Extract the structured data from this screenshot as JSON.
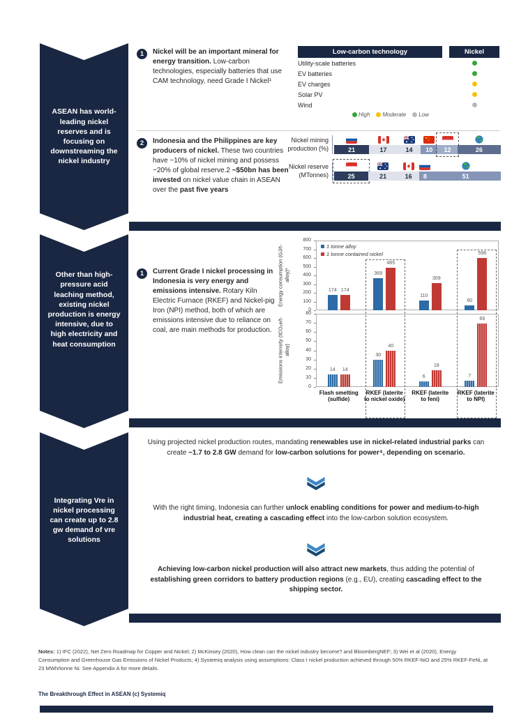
{
  "colors": {
    "navy": "#1a2742",
    "levels": {
      "high": "#35a635",
      "moderate": "#f5c20d",
      "low": "#b8b8b8"
    },
    "chevron_light": "#3d86c6",
    "chevron_dark": "#174a73"
  },
  "banners": [
    {
      "text": "ASEAN has world-leading nickel reserves and is focusing on downstreaming the nickel industry"
    },
    {
      "text": "Other than high-pressure acid leaching method, existing nickel production is energy intensive, due to high electricity and heat consumption"
    },
    {
      "text": "Integrating Vre in nickel processing can create up to 2.8 gw demand of vre solutions"
    }
  ],
  "section_reserves": {
    "point1": {
      "number": "1",
      "runs": [
        {
          "t": "Nickel will be an important mineral for energy transition.",
          "b": true
        },
        {
          "t": " Low-carbon technologies, especially batteries that use CAM technology, need Grade I Nickel¹",
          "b": false
        }
      ]
    },
    "nickel_table": {
      "col1_header": "Low-carbon technology",
      "col2_header": "Nickel",
      "rows": [
        {
          "label": "Utility-scale batteries",
          "level": "high"
        },
        {
          "label": "EV batteries",
          "level": "high"
        },
        {
          "label": "EV charges",
          "level": "moderate"
        },
        {
          "label": "Solar PV",
          "level": "moderate"
        },
        {
          "label": "Wind",
          "level": "low"
        }
      ],
      "legend": [
        {
          "label": "High",
          "level": "high"
        },
        {
          "label": "Moderate",
          "level": "moderate"
        },
        {
          "label": "Low",
          "level": "low"
        }
      ]
    },
    "point2": {
      "number": "2",
      "runs": [
        {
          "t": "Indonesia and the Philippines are key producers of nickel.",
          "b": true
        },
        {
          "t": " These two countries have ~10% of nickel mining and possess ~20% of global reserve.2 ",
          "b": false
        },
        {
          "t": "~$50bn has been invested",
          "b": true
        },
        {
          "t": " on nickel value chain in ASEAN over the ",
          "b": false
        },
        {
          "t": "past five years",
          "b": true
        }
      ]
    }
  },
  "section_energy": {
    "point1": {
      "number": "1",
      "runs": [
        {
          "t": "Current Grade I nickel processing in Indonesia is very energy and emissions intensive.",
          "b": true
        },
        {
          "t": " Rotary Kiln Electric Furnace (RKEF) and Nickel-pig Iron (NPI) method, both of which are emissions intensive due to reliance on coal, are main methods for production.",
          "b": false
        }
      ]
    }
  },
  "chart_data": [
    {
      "id": "nickel_mining_production",
      "type": "bar",
      "subtype": "stacked-horizontal",
      "title": "Nickel mining production (%)",
      "segments": [
        {
          "label": "Russia",
          "flag": "russia",
          "value": 21,
          "color": "#2e3d5c",
          "text_color": "#ffffff",
          "highlight": false
        },
        {
          "label": "Canada",
          "flag": "canada",
          "value": 17,
          "color": "#dfe2ea",
          "text_color": "#1a2742",
          "highlight": false
        },
        {
          "label": "Australia",
          "flag": "australia",
          "value": 14,
          "color": "#dfe2ea",
          "text_color": "#1a2742",
          "highlight": false
        },
        {
          "label": "China",
          "flag": "china",
          "value": 10,
          "color": "#8595b8",
          "text_color": "#ffffff",
          "highlight": false
        },
        {
          "label": "Indonesia",
          "flag": "indonesia",
          "value": 12,
          "color": "#9fadc8",
          "text_color": "#ffffff",
          "highlight": true
        },
        {
          "label": "World",
          "flag": "globe",
          "value": 26,
          "color": "#5d6d8e",
          "text_color": "#ffffff",
          "highlight": false
        }
      ]
    },
    {
      "id": "nickel_reserve",
      "type": "bar",
      "subtype": "stacked-horizontal",
      "title": "Nickel reserve (MTonnes)",
      "segments": [
        {
          "label": "Indonesia",
          "flag": "indonesia",
          "value": 25,
          "color": "#2e3d5c",
          "text_color": "#ffffff",
          "highlight": true
        },
        {
          "label": "Australia",
          "flag": "australia",
          "value": 21,
          "color": "#dfe2ea",
          "text_color": "#1a2742",
          "highlight": false
        },
        {
          "label": "Canada",
          "flag": "canada",
          "value": 16,
          "color": "#dfe2ea",
          "text_color": "#1a2742",
          "highlight": false
        },
        {
          "label": "Russia",
          "flag": "russia",
          "value": 8,
          "color": "#8595b8",
          "text_color": "#ffffff",
          "highlight": false
        },
        {
          "label": "World",
          "flag": "globe",
          "value": 51,
          "color": "#8595b8",
          "text_color": "#ffffff",
          "highlight": false
        }
      ]
    },
    {
      "id": "energy_consumption",
      "type": "bar",
      "ylabel": "Energy consumption (GJ/t-alloy)³",
      "ylim": [
        0,
        800
      ],
      "ytick_step": 100,
      "grid": false,
      "legend_position": "top-left",
      "categories": [
        "Flash smelting (sulfide)",
        "RKEF (laterite to nickel oxide)",
        "RKEF (laterite to feni)",
        "RKEF (laterite to NPI)"
      ],
      "series": [
        {
          "name": "1 tonne alloy",
          "color": "#2c6ba5",
          "values": [
            174,
            369,
            110,
            60
          ]
        },
        {
          "name": "1 tonne contained nickel",
          "color": "#c03a34",
          "values": [
            174,
            485,
            309,
            598
          ]
        }
      ],
      "highlighted_categories": [
        1,
        3
      ]
    },
    {
      "id": "emissions_intensity",
      "type": "bar",
      "ylabel": "Emissions intensity (tCO₂e/t-alloy)",
      "ylim": [
        0,
        80
      ],
      "ytick_step": 10,
      "grid": false,
      "categories": [
        "Flash smelting (sulfide)",
        "RKEF (laterite to nickel oxide)",
        "RKEF (laterite to feni)",
        "RKEF (laterite to NPI)"
      ],
      "series": [
        {
          "name": "1 tonne alloy",
          "color": "#2c6ba5",
          "values": [
            14,
            30,
            6,
            7
          ]
        },
        {
          "name": "1 tonne contained nickel",
          "color": "#c03a34",
          "values": [
            14,
            40,
            18,
            69
          ]
        }
      ],
      "highlighted_categories": [
        1,
        3
      ]
    }
  ],
  "section_vre": {
    "blocks": [
      {
        "runs": [
          {
            "t": "Using projected nickel production routes, mandating ",
            "b": false
          },
          {
            "t": "renewables use in nickel-related industrial parks",
            "b": true
          },
          {
            "t": " can create ",
            "b": false
          },
          {
            "t": "~1.7 to 2.8 GW",
            "b": true
          },
          {
            "t": " demand for ",
            "b": false
          },
          {
            "t": "low-carbon solutions for power⁴, depending on scenario.",
            "b": true
          }
        ]
      },
      {
        "runs": [
          {
            "t": "With the right timing, Indonesia can further ",
            "b": false
          },
          {
            "t": "unlock enabling conditions for power and medium-to-high industrial heat, creating a cascading effect",
            "b": true
          },
          {
            "t": " into the low-carbon solution ecosystem.",
            "b": false
          }
        ]
      },
      {
        "runs": [
          {
            "t": "Achieving low-carbon nickel production will also attract new markets",
            "b": true
          },
          {
            "t": ", thus adding the potential of ",
            "b": false
          },
          {
            "t": "establishing green corridors to battery production regions",
            "b": true
          },
          {
            "t": " (e.g., EU), creating ",
            "b": false
          },
          {
            "t": "cascading effect to the shipping sector.",
            "b": true
          }
        ]
      }
    ]
  },
  "notes": {
    "label": "Notes:",
    "text": " 1) IFC (2022), Net Zero Roadmap for Copper and Nickel; 2) McKinsey (2020), How clean can the nickel industry become? and BloombergNEF; 3) Wei et al (2020), Energy Consumption and Greenhouse Gas Emissions of Nickel Products; 4) Systemiq analysis using assumptions: Class I nickel production achieved through 50% RKEF-NiO and 25% RKEF-FeNi, at 23 MWh/tonne Ni. See Appendix A for more details."
  },
  "footer": {
    "text": "The Breakthrough Effect in ASEAN (c) Systemiq"
  }
}
